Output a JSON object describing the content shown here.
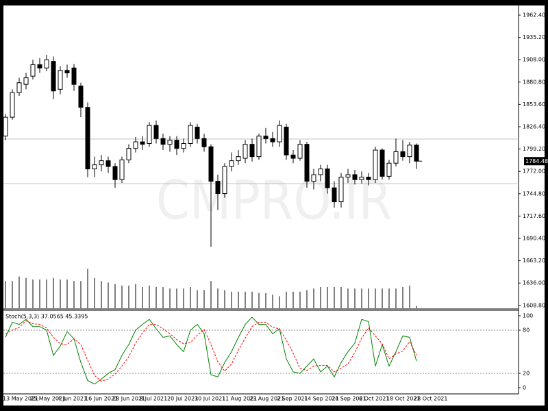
{
  "chart_data": [
    {
      "type": "candlestick",
      "watermark": "CMPRO.IR",
      "categories": [
        "13 May 2021",
        null,
        null,
        null,
        "25 May 2021",
        null,
        null,
        null,
        "4 Jun 2021",
        null,
        null,
        null,
        "16 Jun 2021",
        null,
        null,
        null,
        "28 Jun 2021",
        null,
        null,
        null,
        "8 Jul 2021",
        null,
        null,
        null,
        "20 Jul 2021",
        null,
        null,
        null,
        "30 Jul 2021",
        null,
        null,
        null,
        "11 Aug 2021",
        null,
        null,
        null,
        "23 Aug 2021",
        null,
        null,
        null,
        "2 Sep 2021",
        null,
        null,
        null,
        "14 Sep 2021",
        null,
        null,
        null,
        "24 Sep 2021",
        null,
        null,
        null,
        "6 Oct 2021",
        null,
        null,
        null,
        "18 Oct 2021",
        null,
        null,
        null,
        "28 Oct 2021"
      ],
      "open": [
        1815,
        1838,
        1868,
        1878,
        1888,
        1902,
        1898,
        1906,
        1872,
        1895,
        1898,
        1876,
        1850,
        1775,
        1780,
        1785,
        1778,
        1762,
        1786,
        1800,
        1808,
        1806,
        1828,
        1812,
        1805,
        1810,
        1800,
        1806,
        1826,
        1812,
        1802,
        1760,
        1745,
        1778,
        1785,
        1788,
        1805,
        1790,
        1815,
        1812,
        1808,
        1826,
        1792,
        1788,
        1805,
        1760,
        1768,
        1775,
        1752,
        1735,
        1765,
        1768,
        1762,
        1765,
        1762,
        1798,
        1766,
        1782,
        1796,
        1790,
        1804
      ],
      "high": [
        1842,
        1872,
        1886,
        1892,
        1908,
        1910,
        1914,
        1912,
        1900,
        1902,
        1903,
        1880,
        1856,
        1790,
        1792,
        1790,
        1782,
        1790,
        1805,
        1814,
        1815,
        1832,
        1834,
        1818,
        1815,
        1815,
        1812,
        1832,
        1830,
        1818,
        1805,
        1768,
        1782,
        1795,
        1798,
        1810,
        1812,
        1818,
        1825,
        1820,
        1834,
        1830,
        1798,
        1810,
        1808,
        1775,
        1780,
        1780,
        1760,
        1770,
        1775,
        1774,
        1772,
        1770,
        1802,
        1800,
        1786,
        1812,
        1810,
        1808,
        1806
      ],
      "low": [
        1810,
        1835,
        1864,
        1872,
        1884,
        1892,
        1894,
        1860,
        1866,
        1886,
        1870,
        1838,
        1765,
        1765,
        1772,
        1770,
        1752,
        1758,
        1782,
        1795,
        1798,
        1802,
        1806,
        1798,
        1796,
        1792,
        1795,
        1802,
        1806,
        1796,
        1680,
        1725,
        1740,
        1772,
        1780,
        1782,
        1784,
        1786,
        1806,
        1802,
        1802,
        1786,
        1782,
        1785,
        1752,
        1750,
        1760,
        1745,
        1728,
        1728,
        1758,
        1756,
        1757,
        1755,
        1758,
        1762,
        1762,
        1778,
        1785,
        1782,
        1775
      ],
      "close": [
        1838,
        1868,
        1880,
        1886,
        1902,
        1898,
        1908,
        1870,
        1895,
        1892,
        1878,
        1850,
        1775,
        1780,
        1785,
        1778,
        1762,
        1786,
        1800,
        1808,
        1805,
        1828,
        1812,
        1805,
        1810,
        1800,
        1806,
        1828,
        1812,
        1802,
        1760,
        1745,
        1778,
        1785,
        1790,
        1805,
        1790,
        1815,
        1812,
        1808,
        1828,
        1792,
        1788,
        1805,
        1760,
        1768,
        1775,
        1752,
        1735,
        1765,
        1768,
        1762,
        1765,
        1762,
        1798,
        1766,
        1782,
        1796,
        1790,
        1804,
        1784.48
      ],
      "volume": [
        36,
        36,
        42,
        40,
        38,
        38,
        38,
        40,
        38,
        38,
        36,
        36,
        52,
        40,
        36,
        34,
        32,
        30,
        30,
        32,
        28,
        30,
        28,
        28,
        26,
        26,
        26,
        28,
        24,
        24,
        36,
        26,
        24,
        22,
        22,
        22,
        22,
        20,
        20,
        18,
        16,
        22,
        22,
        22,
        24,
        26,
        28,
        28,
        28,
        28,
        26,
        26,
        26,
        26,
        26,
        26,
        26,
        26,
        28,
        30,
        3
      ],
      "vlim": [
        0,
        400
      ],
      "ylim": [
        1605.3,
        1974.1
      ],
      "yticks": [
        {
          "value": 1962.4,
          "label": "1962.40"
        },
        {
          "value": 1935.2,
          "label": "1935.20"
        },
        {
          "value": 1908,
          "label": "1908.00"
        },
        {
          "value": 1880.8,
          "label": "1880.80"
        },
        {
          "value": 1853.6,
          "label": "1853.60"
        },
        {
          "value": 1826.4,
          "label": "1826.40"
        },
        {
          "value": 1799.2,
          "label": "1799.20"
        },
        {
          "value": 1772,
          "label": "1772.00"
        },
        {
          "value": 1744.8,
          "label": "1744.80"
        },
        {
          "value": 1717.6,
          "label": "1717.60"
        },
        {
          "value": 1690.4,
          "label": "1690.40"
        },
        {
          "value": 1663.2,
          "label": "1663.20"
        },
        {
          "value": 1636,
          "label": "1636.00"
        },
        {
          "value": 1608.8,
          "label": "1608.80"
        }
      ],
      "hlines": [
        1811.4,
        1757.1
      ]
    },
    {
      "type": "line",
      "title": "Stoch(5,3,3) 37.0565 45.3395",
      "series": [
        {
          "color": "#008000",
          "values": [
            70,
            91,
            88,
            95,
            85,
            85,
            80,
            45,
            58,
            78,
            68,
            35,
            10,
            5,
            12,
            20,
            25,
            45,
            60,
            80,
            88,
            95,
            82,
            70,
            72,
            60,
            50,
            80,
            88,
            75,
            18,
            15,
            35,
            50,
            70,
            88,
            98,
            88,
            88,
            75,
            82,
            40,
            22,
            20,
            30,
            40,
            22,
            30,
            15,
            35,
            50,
            62,
            95,
            92,
            30,
            60,
            30,
            50,
            72,
            70,
            37.0565
          ]
        },
        {
          "color": "#ff0000",
          "dashed": true,
          "values": [
            75,
            80,
            84,
            93,
            89,
            88,
            83,
            70,
            61,
            60,
            68,
            60,
            38,
            17,
            9,
            12,
            19,
            30,
            43,
            62,
            76,
            88,
            88,
            82,
            75,
            67,
            61,
            63,
            73,
            81,
            60,
            36,
            23,
            33,
            52,
            69,
            85,
            91,
            91,
            84,
            82,
            66,
            48,
            27,
            24,
            30,
            31,
            31,
            22,
            27,
            33,
            49,
            69,
            83,
            72,
            61,
            40,
            47,
            51,
            64,
            45.3395
          ]
        }
      ],
      "ylim": [
        -8.6,
        105.7
      ],
      "yticks": [
        100,
        80,
        20,
        0
      ],
      "levels": [
        80,
        20
      ]
    }
  ]
}
